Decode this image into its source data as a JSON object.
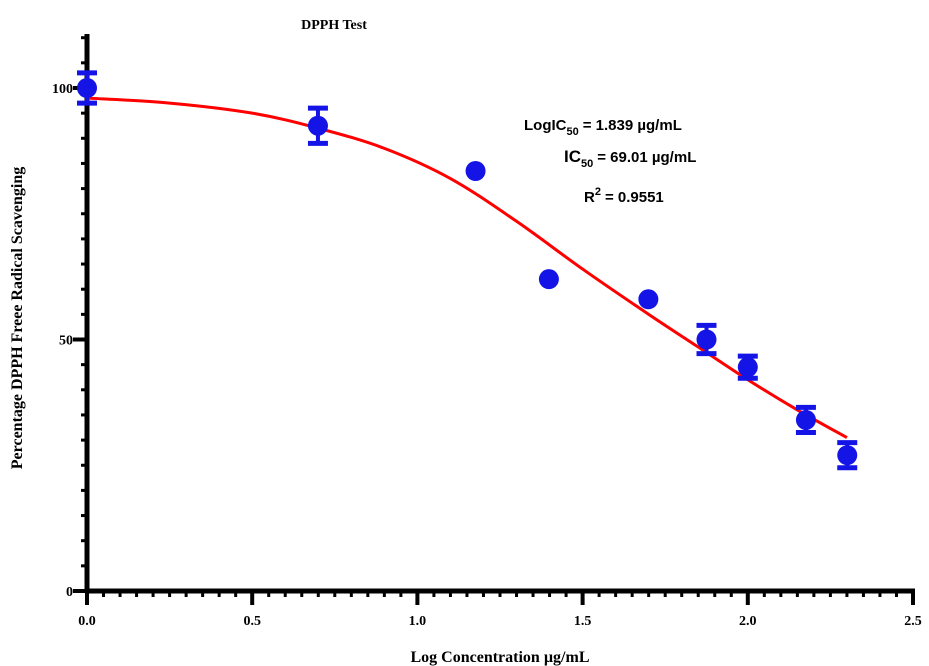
{
  "chart_data": {
    "type": "scatter",
    "title": "DPPH Test",
    "xlabel": "Log Concentration µg/mL",
    "ylabel": "Percentage DPPH Freee Radical Scavenging",
    "xlim": [
      0,
      2.5
    ],
    "ylim": [
      0,
      100
    ],
    "x_ticks": [
      "0.0",
      "0.5",
      "1.0",
      "1.5",
      "2.0",
      "2.5"
    ],
    "y_ticks": [
      "0",
      "50",
      "100"
    ],
    "grid": false,
    "series": [
      {
        "color": "#1414e6",
        "points": [
          {
            "x": 0.0,
            "y": 100,
            "err": 3
          },
          {
            "x": 0.699,
            "y": 92.5,
            "err": 3.5
          },
          {
            "x": 1.176,
            "y": 83.5,
            "err": 0
          },
          {
            "x": 1.398,
            "y": 62,
            "err": 0
          },
          {
            "x": 1.699,
            "y": 58,
            "err": 0
          },
          {
            "x": 1.875,
            "y": 50,
            "err": 2.8
          },
          {
            "x": 2.0,
            "y": 44.5,
            "err": 2.2
          },
          {
            "x": 2.176,
            "y": 34,
            "err": 2.5
          },
          {
            "x": 2.301,
            "y": 27,
            "err": 2.5
          }
        ]
      }
    ],
    "fit": {
      "color": "#ff0000",
      "model": "four-parameter logistic",
      "x": [
        0.0,
        0.25,
        0.5,
        0.7,
        0.9,
        1.1,
        1.3,
        1.5,
        1.7,
        1.85,
        2.0,
        2.15,
        2.3
      ],
      "y": [
        98,
        97,
        95,
        92,
        88,
        82,
        73.5,
        64,
        55,
        48.5,
        42,
        36,
        30.5
      ]
    },
    "annotations": {
      "logic50_label": "LogIC",
      "logic50_sub": "50",
      "logic50_value": "= 1.839 µg/mL",
      "ic50_label": "IC",
      "ic50_sub": "50",
      "ic50_value": "= 69.01 µg/mL",
      "r2_label": "R",
      "r2_sup": "2",
      "r2_value": "= 0.9551"
    }
  }
}
